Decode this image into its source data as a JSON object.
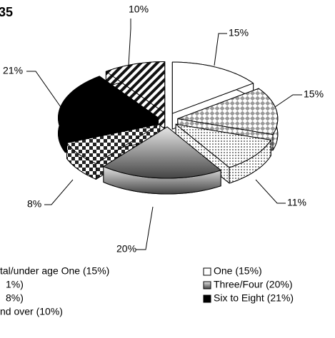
{
  "chart_data": {
    "type": "pie",
    "title": "35",
    "categories": [
      "One (15%)",
      "tal/under age One (15%)",
      "1%)",
      "Three/Four (20%)",
      "8%)",
      "Six to Eight (21%)",
      "nd over (10%)"
    ],
    "values": [
      15,
      15,
      11,
      20,
      8,
      21,
      10
    ],
    "value_labels": [
      "15%",
      "15%",
      "11%",
      "20%",
      "8%",
      "21%",
      "10%"
    ],
    "patterns": [
      "white",
      "diamond",
      "dots",
      "gray",
      "checker",
      "black",
      "stripes"
    ]
  }
}
